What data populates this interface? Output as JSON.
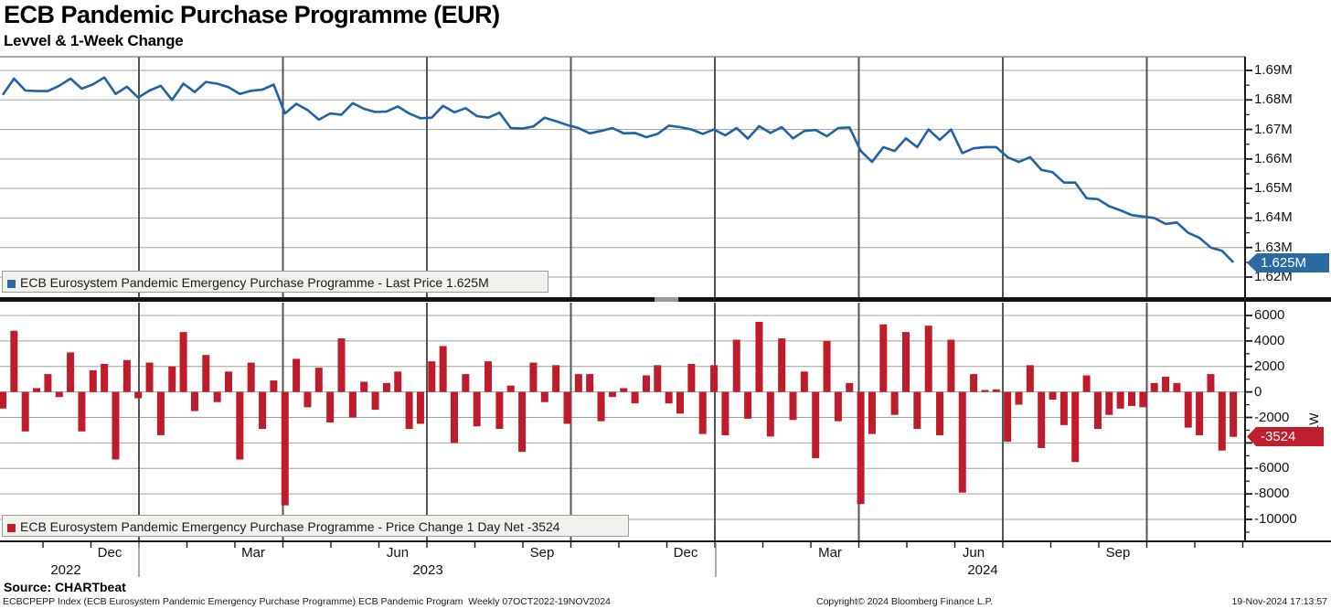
{
  "header": {
    "title": "ECB Pandemic Purchase Programme (EUR)",
    "subtitle": "Levvel & 1-Week Change"
  },
  "top_panel": {
    "legend": "ECB Eurosystem Pandemic Emergency Purchase Programme - Last Price 1.625M",
    "last_price_badge": "1.625M",
    "y_tick_labels": [
      "1.69M",
      "1.68M",
      "1.67M",
      "1.66M",
      "1.65M",
      "1.64M",
      "1.63M",
      "1.62M"
    ]
  },
  "bottom_panel": {
    "legend": "ECB Eurosystem Pandemic Emergency Purchase Programme - Price Change 1 Day Net -3524",
    "value_badge": "-3524",
    "axis_unit_label": "1W",
    "y_tick_labels": [
      "6000",
      "4000",
      "2000",
      "0",
      "-2000",
      "-4000",
      "-6000",
      "-8000",
      "-10000"
    ]
  },
  "x_axis": {
    "month_labels": [
      "Dec",
      "Mar",
      "Jun",
      "Sep",
      "Dec",
      "Mar",
      "Jun",
      "Sep"
    ],
    "year_labels": [
      "2022",
      "2023",
      "2024"
    ]
  },
  "footer": {
    "source": "Source: CHARTbeat",
    "description": "ECBCPEPP Index (ECB Eurosystem Pandemic Emergency Purchase Programme) ECB Pandemic Program  Weekly 07OCT2022-19NOV2024",
    "copyright": "Copyright© 2024 Bloomberg Finance L.P.",
    "timestamp": "19-Nov-2024 17:13:57"
  },
  "colors": {
    "line_blue": "#2063a5",
    "bar_red": "#c01b2b",
    "badge_blue_bg": "#2a6aa0",
    "badge_red_bg": "#bf1e2d",
    "grid_h": "#a0a0a0",
    "grid_v": "#555555",
    "axis": "#1a1a1a"
  },
  "chart_data": [
    {
      "type": "line",
      "title": "ECB Eurosystem Pandemic Emergency Purchase Programme",
      "series_label": "Last Price",
      "unit": "EUR (millions, shown as M)",
      "frequency": "Weekly",
      "period": "07OCT2022-19NOV2024",
      "last_price": "1.625M",
      "ylim": [
        1.62,
        1.69
      ],
      "y_ticks": [
        1.69,
        1.68,
        1.67,
        1.66,
        1.65,
        1.64,
        1.63,
        1.62
      ],
      "legend_position": "bottom-left-inside",
      "grid": true,
      "values": [
        1.6817,
        1.6872,
        1.6832,
        1.683,
        1.683,
        1.6848,
        1.6872,
        1.6838,
        1.6853,
        1.6876,
        1.682,
        1.6845,
        1.6808,
        1.6832,
        1.6848,
        1.68,
        1.6855,
        1.6827,
        1.6861,
        1.6855,
        1.6843,
        1.682,
        1.6831,
        1.6835,
        1.6852,
        1.6754,
        1.6787,
        1.6766,
        1.6733,
        1.6754,
        1.675,
        1.6789,
        1.677,
        1.6759,
        1.6761,
        1.6778,
        1.6754,
        1.6738,
        1.674,
        1.678,
        1.6758,
        1.6772,
        1.6745,
        1.674,
        1.6757,
        1.6705,
        1.6703,
        1.671,
        1.674,
        1.6728,
        1.6715,
        1.6705,
        1.6687,
        1.6695,
        1.6705,
        1.6687,
        1.6688,
        1.6674,
        1.6685,
        1.6713,
        1.6708,
        1.67,
        1.6685,
        1.67,
        1.668,
        1.6705,
        1.6669,
        1.6711,
        1.6688,
        1.6708,
        1.667,
        1.6695,
        1.6698,
        1.6677,
        1.6705,
        1.6707,
        1.6627,
        1.659,
        1.664,
        1.6627,
        1.667,
        1.664,
        1.67,
        1.6665,
        1.67,
        1.662,
        1.6636,
        1.664,
        1.664,
        1.6606,
        1.659,
        1.6606,
        1.6563,
        1.6555,
        1.652,
        1.652,
        1.6467,
        1.6464,
        1.644,
        1.6426,
        1.641,
        1.6405,
        1.64,
        1.638,
        1.6385,
        1.635,
        1.6333,
        1.63,
        1.6289,
        1.625
      ]
    },
    {
      "type": "bar",
      "title": "ECB Eurosystem Pandemic Emergency Purchase Programme",
      "series_label": "Price Change 1 Day Net",
      "frequency": "Weekly",
      "period": "07OCT2022-19NOV2024",
      "last_value": -3524,
      "ylim": [
        -10000,
        6000
      ],
      "y_ticks": [
        6000,
        4000,
        2000,
        0,
        -2000,
        -4000,
        -6000,
        -8000,
        -10000
      ],
      "legend_position": "bottom-left-inside",
      "grid": true,
      "values": [
        -1300,
        4800,
        -3100,
        300,
        1400,
        -400,
        3100,
        -3100,
        1700,
        2200,
        -5300,
        2500,
        -500,
        2300,
        -3400,
        2000,
        4700,
        -1500,
        2900,
        -800,
        1600,
        -5300,
        2300,
        -2900,
        900,
        -8900,
        2600,
        -1200,
        1900,
        -2400,
        4200,
        -2000,
        800,
        -1400,
        700,
        1600,
        -2900,
        -2500,
        2400,
        3600,
        -4000,
        1400,
        -2700,
        2400,
        -2900,
        500,
        -4700,
        2300,
        -800,
        2100,
        -2500,
        1400,
        1400,
        -2300,
        -400,
        300,
        -900,
        1300,
        2100,
        -900,
        -1700,
        2200,
        -3300,
        2100,
        -3400,
        4100,
        -2100,
        5500,
        -3500,
        4200,
        -2200,
        1600,
        -5200,
        4000,
        -2300,
        700,
        -8800,
        -3300,
        5300,
        -1800,
        4700,
        -2900,
        5200,
        -3400,
        4100,
        -7900,
        1400,
        150,
        200,
        -3900,
        -1000,
        2100,
        -4400,
        -600,
        -2600,
        -5500,
        1300,
        -2900,
        -1800,
        -1300,
        -1100,
        -1200,
        700,
        1200,
        700,
        -2800,
        -3400,
        1400,
        -4600,
        -3524
      ]
    }
  ]
}
